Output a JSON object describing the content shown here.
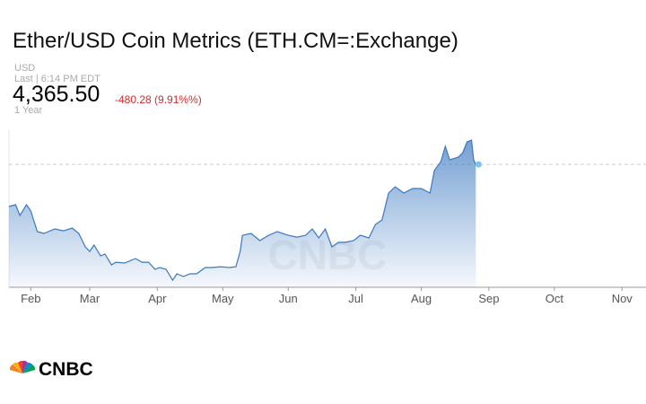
{
  "chart_data": {
    "type": "area",
    "title": "Ether/USD Coin Metrics (ETH.CM=:Exchange)",
    "currency": "USD",
    "last_time": "Last | 6:14 PM EDT",
    "last_price": {
      "value": 4365.5,
      "label": "4,365.50"
    },
    "change": "-480.28 (9.91%%)",
    "range": "1 Year",
    "brand": "CNBC",
    "color": "#3a78c0",
    "x": [
      0,
      3,
      5,
      8,
      10,
      13,
      16,
      21,
      25,
      29,
      32,
      35,
      37,
      39,
      42,
      44,
      47,
      49,
      53,
      58,
      61,
      64,
      67,
      69,
      72,
      75,
      77,
      80,
      83,
      86,
      90,
      93,
      97,
      101,
      104,
      106,
      107,
      111,
      115,
      119,
      123,
      128,
      132,
      136,
      139,
      142,
      145,
      148,
      151,
      154,
      158,
      161,
      165,
      168,
      171,
      174,
      177,
      181,
      185,
      189,
      193,
      195,
      198,
      200,
      202,
      206,
      208,
      210,
      212,
      213,
      214
    ],
    "values": [
      3315,
      3360,
      3091,
      3360,
      3203,
      2688,
      2643,
      2755,
      2710,
      2777,
      2643,
      2307,
      2195,
      2352,
      2083,
      2128,
      1859,
      1926,
      1904,
      2016,
      1926,
      1926,
      1747,
      1792,
      1747,
      1478,
      1635,
      1568,
      1635,
      1635,
      1792,
      1792,
      1814,
      1792,
      1814,
      2195,
      2598,
      2643,
      2464,
      2598,
      2688,
      2598,
      2553,
      2598,
      2755,
      2531,
      2755,
      2307,
      2419,
      2419,
      2464,
      2598,
      2531,
      2867,
      2979,
      3651,
      3808,
      3651,
      3763,
      3763,
      3651,
      4211,
      4435,
      4816,
      4480,
      4547,
      4659,
      4928,
      4972,
      4480,
      4365.5
    ],
    "xlim": [
      0,
      292
    ],
    "ylim": [
      1300,
      5220
    ],
    "xticks": [
      {
        "value": 10,
        "label": "Feb"
      },
      {
        "value": 37,
        "label": "Mar"
      },
      {
        "value": 68,
        "label": "Apr"
      },
      {
        "value": 98,
        "label": "May"
      },
      {
        "value": 128,
        "label": "Jun"
      },
      {
        "value": 159,
        "label": "Jul"
      },
      {
        "value": 189,
        "label": "Aug"
      },
      {
        "value": 220,
        "label": "Sep"
      },
      {
        "value": 250,
        "label": "Oct"
      },
      {
        "value": 281,
        "label": "Nov"
      }
    ]
  }
}
